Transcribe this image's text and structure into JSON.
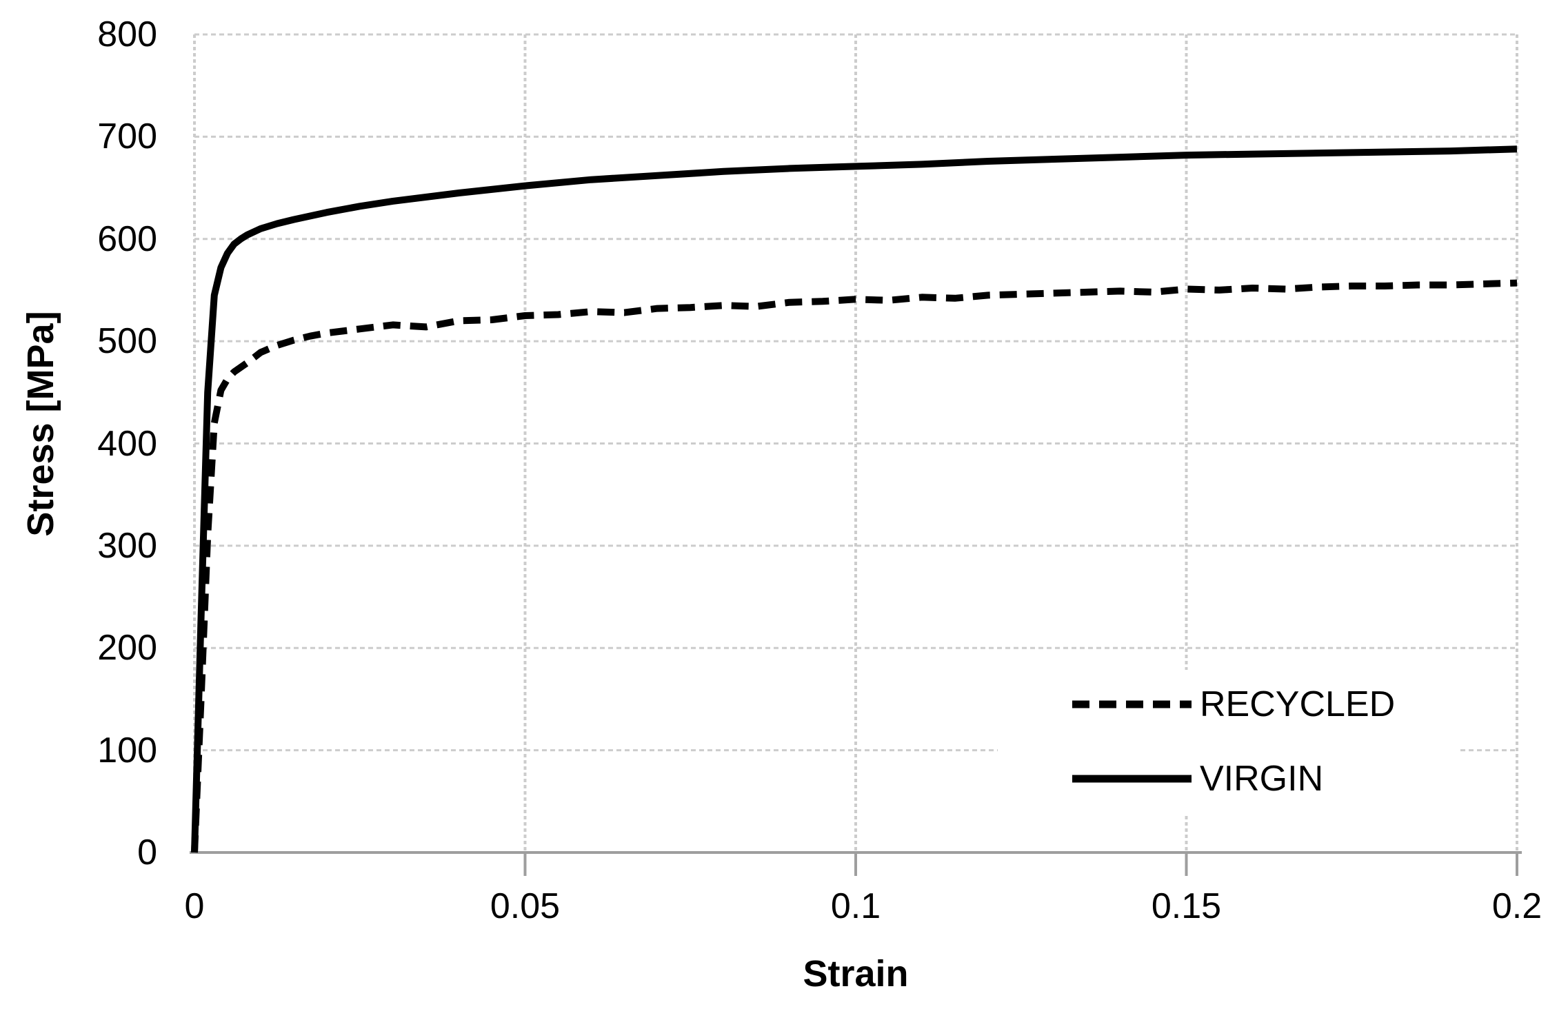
{
  "chart_data": {
    "type": "line",
    "title": "",
    "xlabel": "Strain",
    "ylabel": "Stress [MPa]",
    "xlim": [
      0,
      0.2
    ],
    "ylim": [
      0,
      800
    ],
    "grid": "on",
    "legend_position": "inside-lower-right",
    "x_ticks": {
      "values": [
        0,
        0.05,
        0.1,
        0.15,
        0.2
      ],
      "labels": [
        "0",
        "0.05",
        "0.1",
        "0.15",
        "0.2"
      ]
    },
    "y_ticks": {
      "values": [
        0,
        100,
        200,
        300,
        400,
        500,
        600,
        700,
        800
      ],
      "labels": [
        "0",
        "100",
        "200",
        "300",
        "400",
        "500",
        "600",
        "700",
        "800"
      ]
    },
    "series": [
      {
        "name": "RECYCLED",
        "line_style": "dashed",
        "color": "#000000",
        "x": [
          0,
          0.001,
          0.002,
          0.003,
          0.004,
          0.005,
          0.006,
          0.008,
          0.01,
          0.0125,
          0.015,
          0.0175,
          0.02,
          0.025,
          0.03,
          0.035,
          0.04,
          0.045,
          0.05,
          0.055,
          0.06,
          0.065,
          0.07,
          0.075,
          0.08,
          0.085,
          0.09,
          0.095,
          0.1,
          0.105,
          0.11,
          0.115,
          0.12,
          0.125,
          0.13,
          0.135,
          0.14,
          0.145,
          0.15,
          0.155,
          0.16,
          0.165,
          0.17,
          0.175,
          0.18,
          0.185,
          0.19,
          0.195,
          0.2
        ],
        "y": [
          0,
          150,
          310,
          420,
          452,
          463,
          470,
          479,
          489,
          496,
          501,
          505,
          508,
          512,
          516,
          514,
          520,
          521,
          525,
          526,
          529,
          528,
          532,
          533,
          535,
          534,
          538,
          539,
          541,
          540,
          543,
          542,
          545,
          546,
          547,
          548,
          549,
          548,
          551,
          550,
          552,
          551,
          553,
          554,
          554,
          555,
          555,
          556,
          557
        ]
      },
      {
        "name": "VIRGIN",
        "line_style": "solid",
        "color": "#000000",
        "x": [
          0,
          0.001,
          0.002,
          0.003,
          0.004,
          0.005,
          0.006,
          0.007,
          0.008,
          0.01,
          0.0125,
          0.015,
          0.02,
          0.025,
          0.03,
          0.04,
          0.05,
          0.06,
          0.07,
          0.08,
          0.09,
          0.1,
          0.11,
          0.12,
          0.13,
          0.14,
          0.15,
          0.16,
          0.17,
          0.18,
          0.19,
          0.2
        ],
        "y": [
          0,
          230,
          450,
          545,
          572,
          586,
          595,
          600,
          604,
          610,
          615,
          619,
          626,
          632,
          637,
          645,
          652,
          658,
          662,
          666,
          669,
          671,
          673,
          676,
          678,
          680,
          682,
          683,
          684,
          685,
          686,
          688
        ]
      }
    ]
  },
  "colors": {
    "curve": "#000000",
    "gridline": "#cccccc",
    "axis_line": "#9e9e9e",
    "text": "#000000",
    "background": "#ffffff"
  }
}
